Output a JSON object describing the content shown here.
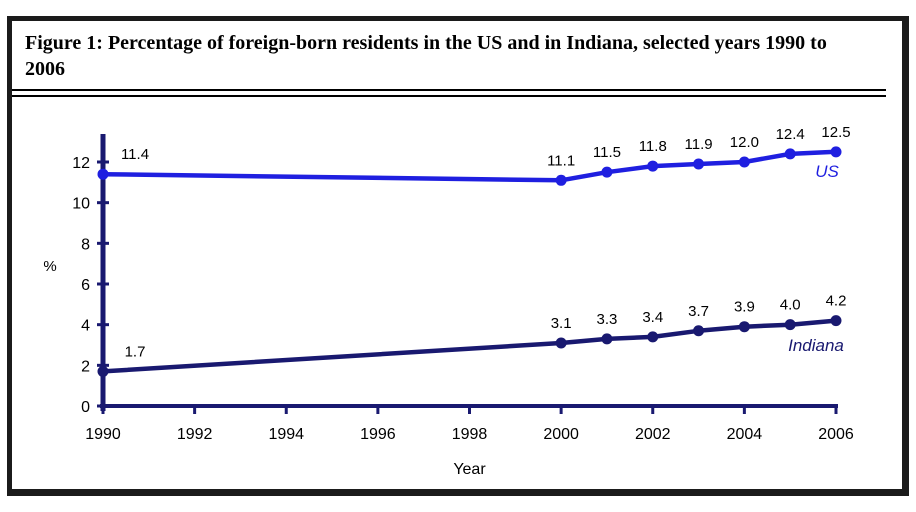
{
  "figure": {
    "title": "Figure 1: Percentage of foreign-born residents in the US and in Indiana, selected years 1990 to 2006"
  },
  "chart_data": {
    "type": "line",
    "x": [
      1990,
      2000,
      2001,
      2002,
      2003,
      2004,
      2005,
      2006
    ],
    "series": [
      {
        "name": "US",
        "color": "#1f1fe0",
        "values": [
          11.4,
          11.1,
          11.5,
          11.8,
          11.9,
          12.0,
          12.4,
          12.5
        ]
      },
      {
        "name": "Indiana",
        "color": "#191970",
        "values": [
          1.7,
          3.1,
          3.3,
          3.4,
          3.7,
          3.9,
          4.0,
          4.2
        ]
      }
    ],
    "xlabel": "Year",
    "ylabel": "%",
    "x_ticks": [
      1990,
      1992,
      1994,
      1996,
      1998,
      2000,
      2002,
      2004,
      2006
    ],
    "y_ticks": [
      0,
      2,
      4,
      6,
      8,
      10,
      12
    ],
    "xlim": [
      1990,
      2006
    ],
    "ylim": [
      0,
      13.4
    ],
    "grid": false,
    "axis_color": "#191970",
    "data_labels": true,
    "legend_position": "inline labels at right end of each line"
  }
}
